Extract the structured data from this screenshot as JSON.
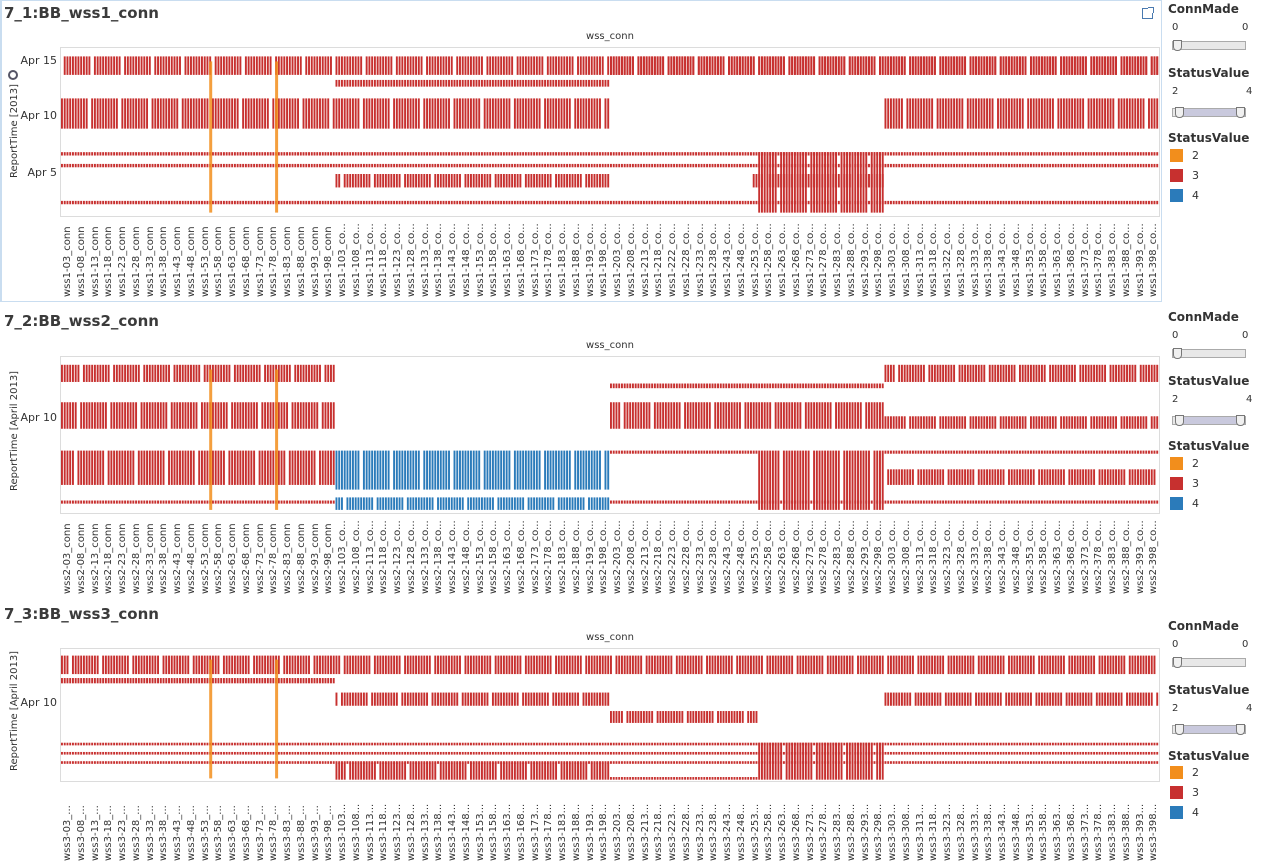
{
  "colors": {
    "s2": "#f28e1c",
    "s3": "#c7302f",
    "s4": "#2b7bba"
  },
  "panels": [
    {
      "title": "7_1:BB_wss1_conn",
      "chart_title": "wss_conn",
      "y_label": "ReportTime [2013]",
      "y_ticks": [
        "Apr 15",
        "Apr 10",
        "Apr 5"
      ],
      "prefix": "wss1",
      "x_labels": [
        "wss1-03_conn",
        "wss1-08_conn",
        "wss1-13_conn",
        "wss1-18_conn",
        "wss1-23_conn",
        "wss1-28_conn",
        "wss1-33_conn",
        "wss1-38_conn",
        "wss1-43_conn",
        "wss1-48_conn",
        "wss1-53_conn",
        "wss1-58_conn",
        "wss1-63_conn",
        "wss1-68_conn",
        "wss1-73_conn",
        "wss1-78_conn",
        "wss1-83_conn",
        "wss1-88_conn",
        "wss1-93_conn",
        "wss1-98_conn",
        "wss1-103_co...",
        "wss1-108_co...",
        "wss1-113_co...",
        "wss1-118_co...",
        "wss1-123_co...",
        "wss1-128_co...",
        "wss1-133_co...",
        "wss1-138_co...",
        "wss1-143_co...",
        "wss1-148_co...",
        "wss1-153_co...",
        "wss1-158_co...",
        "wss1-163_co...",
        "wss1-168_co...",
        "wss1-173_co...",
        "wss1-178_co...",
        "wss1-183_co...",
        "wss1-188_co...",
        "wss1-193_co...",
        "wss1-198_co...",
        "wss1-203_co...",
        "wss1-208_co...",
        "wss1-213_co...",
        "wss1-218_co...",
        "wss1-222_co...",
        "wss1-228_co...",
        "wss1-233_co...",
        "wss1-238_co...",
        "wss1-243_co...",
        "wss1-248_co...",
        "wss1-253_co...",
        "wss1-258_co...",
        "wss1-263_co...",
        "wss1-268_co...",
        "wss1-273_co...",
        "wss1-278_co...",
        "wss1-283_co...",
        "wss1-288_co...",
        "wss1-293_co...",
        "wss1-298_co...",
        "wss1-303_co...",
        "wss1-308_co...",
        "wss1-313_co...",
        "wss1-318_co...",
        "wss1-322_co...",
        "wss1-328_co...",
        "wss1-333_co...",
        "wss1-338_co...",
        "wss1-343_co...",
        "wss1-348_co...",
        "wss1-353_co...",
        "wss1-358_co...",
        "wss1-363_co...",
        "wss1-368_co...",
        "wss1-373_co...",
        "wss1-378_co...",
        "wss1-383_co...",
        "wss1-388_co...",
        "wss1-393_co...",
        "wss1-398_co..."
      ],
      "legend": {
        "connmade_title": "ConnMade",
        "connmade_min": "0",
        "connmade_max": "0",
        "status_range_title": "StatusValue",
        "status_min": "2",
        "status_max": "4",
        "status_title": "StatusValue",
        "items": [
          "2",
          "3",
          "4"
        ]
      },
      "bands": [
        {
          "y": 0.05,
          "h": 0.11,
          "value": 3,
          "segments": [
            [
              0,
              0.5
            ],
            [
              0.5,
              1.0
            ],
            [
              0.5,
              0.93
            ],
            [
              0.93,
              1.0
            ]
          ]
        },
        {
          "y": 0.19,
          "h": 0.04,
          "value": 3,
          "segments": [
            [
              0.25,
              0.5
            ]
          ]
        },
        {
          "y": 0.3,
          "h": 0.18,
          "value": 3,
          "segments": [
            [
              0,
              0.25
            ],
            [
              0.25,
              0.5
            ],
            [
              0.75,
              1.0
            ]
          ]
        },
        {
          "y": 0.62,
          "h": 0.02,
          "value": 3,
          "segments": [
            [
              0,
              1.0
            ]
          ]
        },
        {
          "y": 0.69,
          "h": 0.02,
          "value": 3,
          "segments": [
            [
              0,
              1.0
            ]
          ]
        },
        {
          "y": 0.75,
          "h": 0.08,
          "value": 3,
          "segments": [
            [
              0.25,
              0.5
            ],
            [
              0.63,
              0.75
            ]
          ]
        },
        {
          "y": 0.62,
          "h": 0.36,
          "value": 3,
          "segments": [
            [
              0.635,
              0.75
            ]
          ]
        },
        {
          "y": 0.91,
          "h": 0.02,
          "value": 3,
          "segments": [
            [
              0,
              1.0
            ]
          ]
        }
      ]
    },
    {
      "title": "7_2:BB_wss2_conn",
      "chart_title": "wss_conn",
      "y_label": "ReportTime [April 2013]",
      "y_ticks": [
        "Apr 10"
      ],
      "prefix": "wss2",
      "x_labels": [
        "wss2-03_conn",
        "wss2-08_conn",
        "wss2-13_conn",
        "wss2-18_conn",
        "wss2-23_conn",
        "wss2-28_conn",
        "wss2-33_conn",
        "wss2-38_conn",
        "wss2-43_conn",
        "wss2-48_conn",
        "wss2-53_conn",
        "wss2-58_conn",
        "wss2-63_conn",
        "wss2-68_conn",
        "wss2-73_conn",
        "wss2-78_conn",
        "wss2-83_conn",
        "wss2-88_conn",
        "wss2-93_conn",
        "wss2-98_conn",
        "wss2-103_co...",
        "wss2-108_co...",
        "wss2-113_co...",
        "wss2-118_co...",
        "wss2-123_co...",
        "wss2-128_co...",
        "wss2-133_co...",
        "wss2-138_co...",
        "wss2-143_co...",
        "wss2-148_co...",
        "wss2-153_co...",
        "wss2-158_co...",
        "wss2-163_co...",
        "wss2-168_co...",
        "wss2-173_co...",
        "wss2-178_co...",
        "wss2-183_co...",
        "wss2-188_co...",
        "wss2-193_co...",
        "wss2-198_co...",
        "wss2-203_co...",
        "wss2-208_co...",
        "wss2-213_co...",
        "wss2-218_co...",
        "wss2-223_co...",
        "wss2-228_co...",
        "wss2-233_co...",
        "wss2-238_co...",
        "wss2-243_co...",
        "wss2-248_co...",
        "wss2-253_co...",
        "wss2-258_co...",
        "wss2-263_co...",
        "wss2-268_co...",
        "wss2-273_co...",
        "wss2-278_co...",
        "wss2-283_co...",
        "wss2-288_co...",
        "wss2-293_co...",
        "wss2-298_co...",
        "wss2-303_co...",
        "wss2-308_co...",
        "wss2-313_co...",
        "wss2-318_co...",
        "wss2-323_co...",
        "wss2-328_co...",
        "wss2-333_co...",
        "wss2-338_co...",
        "wss2-343_co...",
        "wss2-348_co...",
        "wss2-353_co...",
        "wss2-358_co...",
        "wss2-363_co...",
        "wss2-368_co...",
        "wss2-373_co...",
        "wss2-378_co...",
        "wss2-383_co...",
        "wss2-388_co...",
        "wss2-393_co...",
        "wss2-398_co..."
      ],
      "legend": {
        "connmade_title": "ConnMade",
        "connmade_min": "0",
        "connmade_max": "0",
        "status_range_title": "StatusValue",
        "status_min": "2",
        "status_max": "4",
        "status_title": "StatusValue",
        "items": [
          "2",
          "3",
          "4"
        ]
      },
      "bands": [
        {
          "y": 0.05,
          "h": 0.11,
          "value": 3,
          "segments": [
            [
              0,
              0.25
            ],
            [
              0.75,
              1.0
            ]
          ]
        },
        {
          "y": 0.17,
          "h": 0.03,
          "value": 3,
          "segments": [
            [
              0.5,
              0.75
            ]
          ]
        },
        {
          "y": 0.29,
          "h": 0.17,
          "value": 3,
          "segments": [
            [
              0,
              0.25
            ],
            [
              0.5,
              0.75
            ]
          ]
        },
        {
          "y": 0.38,
          "h": 0.08,
          "value": 3,
          "segments": [
            [
              0.75,
              1.0
            ]
          ]
        },
        {
          "y": 0.6,
          "h": 0.22,
          "value": 3,
          "segments": [
            [
              0,
              0.25
            ]
          ]
        },
        {
          "y": 0.6,
          "h": 0.25,
          "value": 4,
          "segments": [
            [
              0.25,
              0.5
            ]
          ]
        },
        {
          "y": 0.9,
          "h": 0.08,
          "value": 4,
          "segments": [
            [
              0.25,
              0.5
            ]
          ]
        },
        {
          "y": 0.6,
          "h": 0.38,
          "value": 3,
          "segments": [
            [
              0.635,
              0.75
            ]
          ]
        },
        {
          "y": 0.72,
          "h": 0.1,
          "value": 3,
          "segments": [
            [
              0.75,
              1.0
            ]
          ]
        },
        {
          "y": 0.6,
          "h": 0.02,
          "value": 3,
          "segments": [
            [
              0.5,
              0.635
            ],
            [
              0.75,
              1.0
            ]
          ]
        },
        {
          "y": 0.92,
          "h": 0.02,
          "value": 3,
          "segments": [
            [
              0,
              0.25
            ],
            [
              0.5,
              1.0
            ]
          ]
        }
      ]
    },
    {
      "title": "7_3:BB_wss3_conn",
      "chart_title": "wss_conn",
      "y_label": "ReportTime [April 2013]",
      "y_ticks": [
        "Apr 10"
      ],
      "prefix": "wss3",
      "x_labels": [
        "wss3-03_...",
        "wss3-08_...",
        "wss3-13_...",
        "wss3-18_...",
        "wss3-23_...",
        "wss3-28_...",
        "wss3-33_...",
        "wss3-38_...",
        "wss3-43_...",
        "wss3-48_...",
        "wss3-53_...",
        "wss3-58_...",
        "wss3-63_...",
        "wss3-68_...",
        "wss3-73_...",
        "wss3-78_...",
        "wss3-83_...",
        "wss3-88_...",
        "wss3-93_...",
        "wss3-98_...",
        "wss3-103...",
        "wss3-108...",
        "wss3-113...",
        "wss3-118...",
        "wss3-123...",
        "wss3-128...",
        "wss3-133...",
        "wss3-138...",
        "wss3-143...",
        "wss3-148...",
        "wss3-153...",
        "wss3-158...",
        "wss3-163...",
        "wss3-168...",
        "wss3-173...",
        "wss3-178...",
        "wss3-183...",
        "wss3-188...",
        "wss3-193...",
        "wss3-198...",
        "wss3-203...",
        "wss3-208...",
        "wss3-213...",
        "wss3-218...",
        "wss3-223...",
        "wss3-228...",
        "wss3-233...",
        "wss3-238...",
        "wss3-243...",
        "wss3-248...",
        "wss3-253...",
        "wss3-258...",
        "wss3-263...",
        "wss3-268...",
        "wss3-273...",
        "wss3-278...",
        "wss3-283...",
        "wss3-288...",
        "wss3-293...",
        "wss3-298...",
        "wss3-303...",
        "wss3-308...",
        "wss3-313...",
        "wss3-318...",
        "wss3-323...",
        "wss3-328...",
        "wss3-333...",
        "wss3-338...",
        "wss3-343...",
        "wss3-348...",
        "wss3-353...",
        "wss3-358...",
        "wss3-363...",
        "wss3-368...",
        "wss3-373...",
        "wss3-378...",
        "wss3-383...",
        "wss3-388...",
        "wss3-393...",
        "wss3-398..."
      ],
      "legend": {
        "connmade_title": "ConnMade",
        "connmade_min": "0",
        "connmade_max": "0",
        "status_range_title": "StatusValue",
        "status_min": "2",
        "status_max": "4",
        "status_title": "StatusValue",
        "items": [
          "2",
          "3",
          "4"
        ]
      },
      "bands": [
        {
          "y": 0.05,
          "h": 0.14,
          "value": 3,
          "segments": [
            [
              0,
              1.0
            ]
          ]
        },
        {
          "y": 0.22,
          "h": 0.04,
          "value": 3,
          "segments": [
            [
              0,
              0.25
            ]
          ]
        },
        {
          "y": 0.33,
          "h": 0.1,
          "value": 3,
          "segments": [
            [
              0.25,
              0.5
            ],
            [
              0.75,
              1.0
            ]
          ]
        },
        {
          "y": 0.47,
          "h": 0.09,
          "value": 3,
          "segments": [
            [
              0.5,
              0.635
            ]
          ]
        },
        {
          "y": 0.71,
          "h": 0.02,
          "value": 3,
          "segments": [
            [
              0,
              1.0
            ]
          ]
        },
        {
          "y": 0.78,
          "h": 0.02,
          "value": 3,
          "segments": [
            [
              0,
              1.0
            ]
          ]
        },
        {
          "y": 0.85,
          "h": 0.02,
          "value": 3,
          "segments": [
            [
              0,
              1.0
            ]
          ]
        },
        {
          "y": 0.86,
          "h": 0.13,
          "value": 3,
          "segments": [
            [
              0.25,
              0.5
            ]
          ]
        },
        {
          "y": 0.71,
          "h": 0.28,
          "value": 3,
          "segments": [
            [
              0.635,
              0.75
            ]
          ]
        },
        {
          "y": 0.97,
          "h": 0.02,
          "value": 3,
          "segments": [
            [
              0.5,
              0.635
            ]
          ]
        }
      ]
    }
  ]
}
